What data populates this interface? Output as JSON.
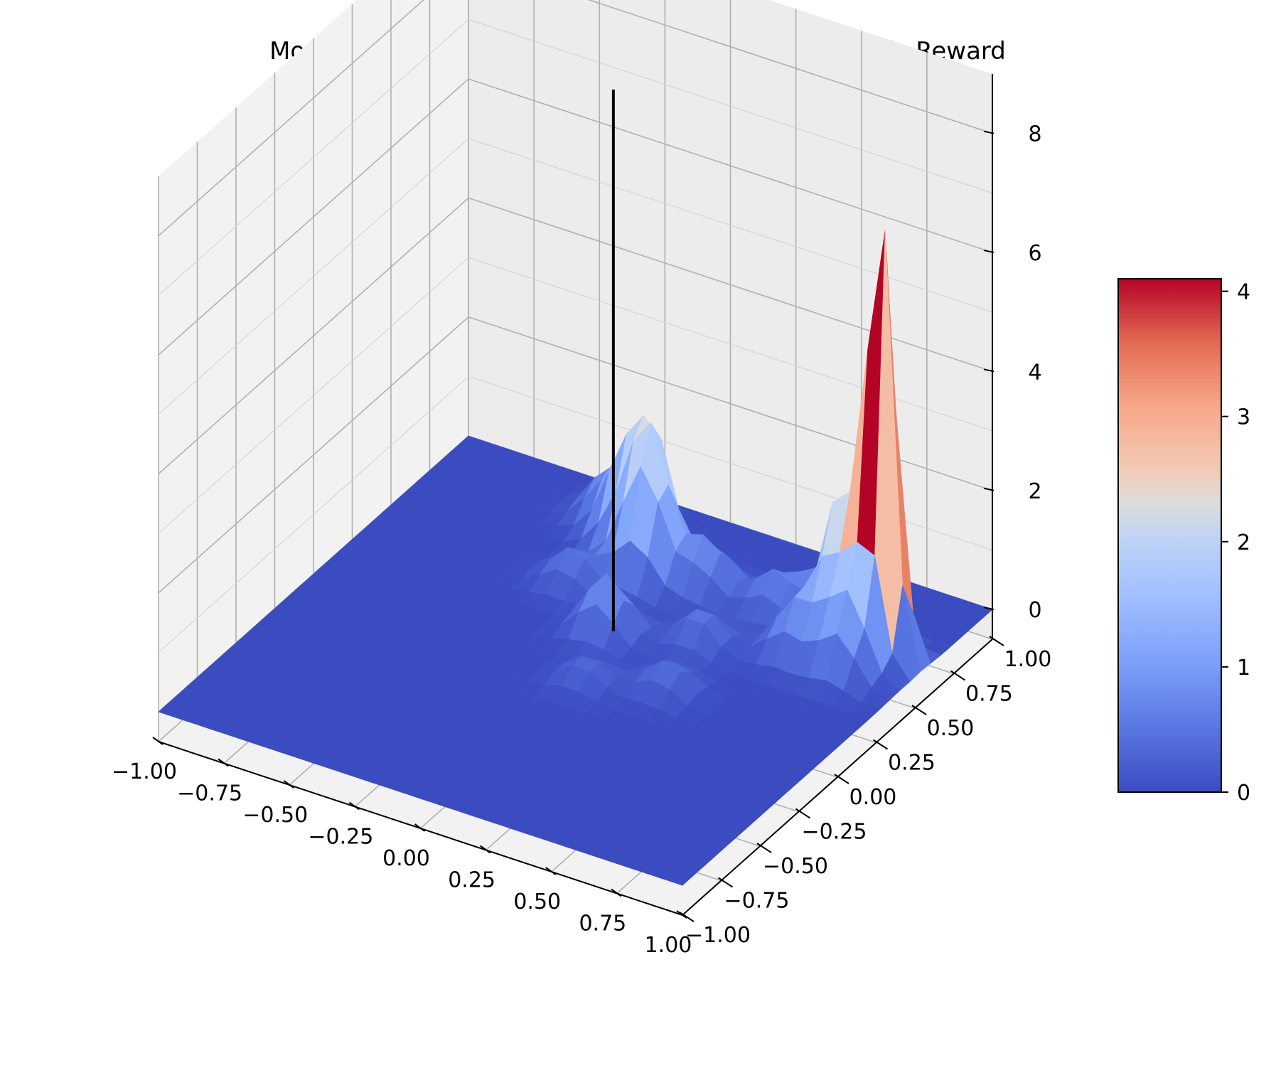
{
  "chart_data": {
    "type": "surface3d",
    "title": "MontezuamRevengeNoFrameskip-v0 | Mean Episodic Reward",
    "xlabel": "",
    "ylabel": "",
    "zlabel": "",
    "x_ticks": [
      "−1.00",
      "−0.75",
      "−0.50",
      "−0.25",
      "0.00",
      "0.25",
      "0.50",
      "0.75",
      "1.00"
    ],
    "y_ticks": [
      "−1.00",
      "−0.75",
      "−0.50",
      "−0.25",
      "0.00",
      "0.25",
      "0.50",
      "0.75",
      "1.00"
    ],
    "z_ticks": [
      "0",
      "2",
      "4",
      "6",
      "8"
    ],
    "xlim": [
      -1.0,
      1.0
    ],
    "ylim": [
      -1.0,
      1.0
    ],
    "zlim": [
      -0.5,
      9.0
    ],
    "colormap": "coolwarm",
    "colorbar": {
      "ticks": [
        "0",
        "1",
        "2",
        "3",
        "4"
      ],
      "range": [
        0,
        4.1
      ]
    },
    "grid": true,
    "surface_base": 0.0,
    "peaks": [
      {
        "x": 0.85,
        "y": 0.55,
        "z": 8.0
      },
      {
        "x": 0.7,
        "y": 0.55,
        "z": 2.6
      },
      {
        "x": 0.8,
        "y": 0.4,
        "z": 1.3
      },
      {
        "x": -0.1,
        "y": 0.65,
        "z": 1.8
      },
      {
        "x": -0.05,
        "y": 0.55,
        "z": 1.6
      },
      {
        "x": -0.22,
        "y": 0.7,
        "z": 1.5
      },
      {
        "x": 0.0,
        "y": 0.2,
        "z": 1.0
      },
      {
        "x": -0.35,
        "y": 0.8,
        "z": 0.8
      },
      {
        "x": 0.15,
        "y": 0.6,
        "z": 0.9
      },
      {
        "x": 0.4,
        "y": 0.6,
        "z": 0.7
      },
      {
        "x": 0.55,
        "y": 0.7,
        "z": 0.8
      },
      {
        "x": 0.6,
        "y": 0.4,
        "z": 0.9
      },
      {
        "x": 0.3,
        "y": 0.3,
        "z": 0.6
      },
      {
        "x": 0.35,
        "y": 0.0,
        "z": 0.5
      },
      {
        "x": -0.25,
        "y": 0.4,
        "z": 0.6
      },
      {
        "x": 0.1,
        "y": -0.1,
        "z": 0.4
      }
    ],
    "vertical_marker": {
      "x": -0.08,
      "y": 0.38,
      "z_from": -0.5,
      "z_to": 8.6,
      "color": "#000000"
    }
  }
}
